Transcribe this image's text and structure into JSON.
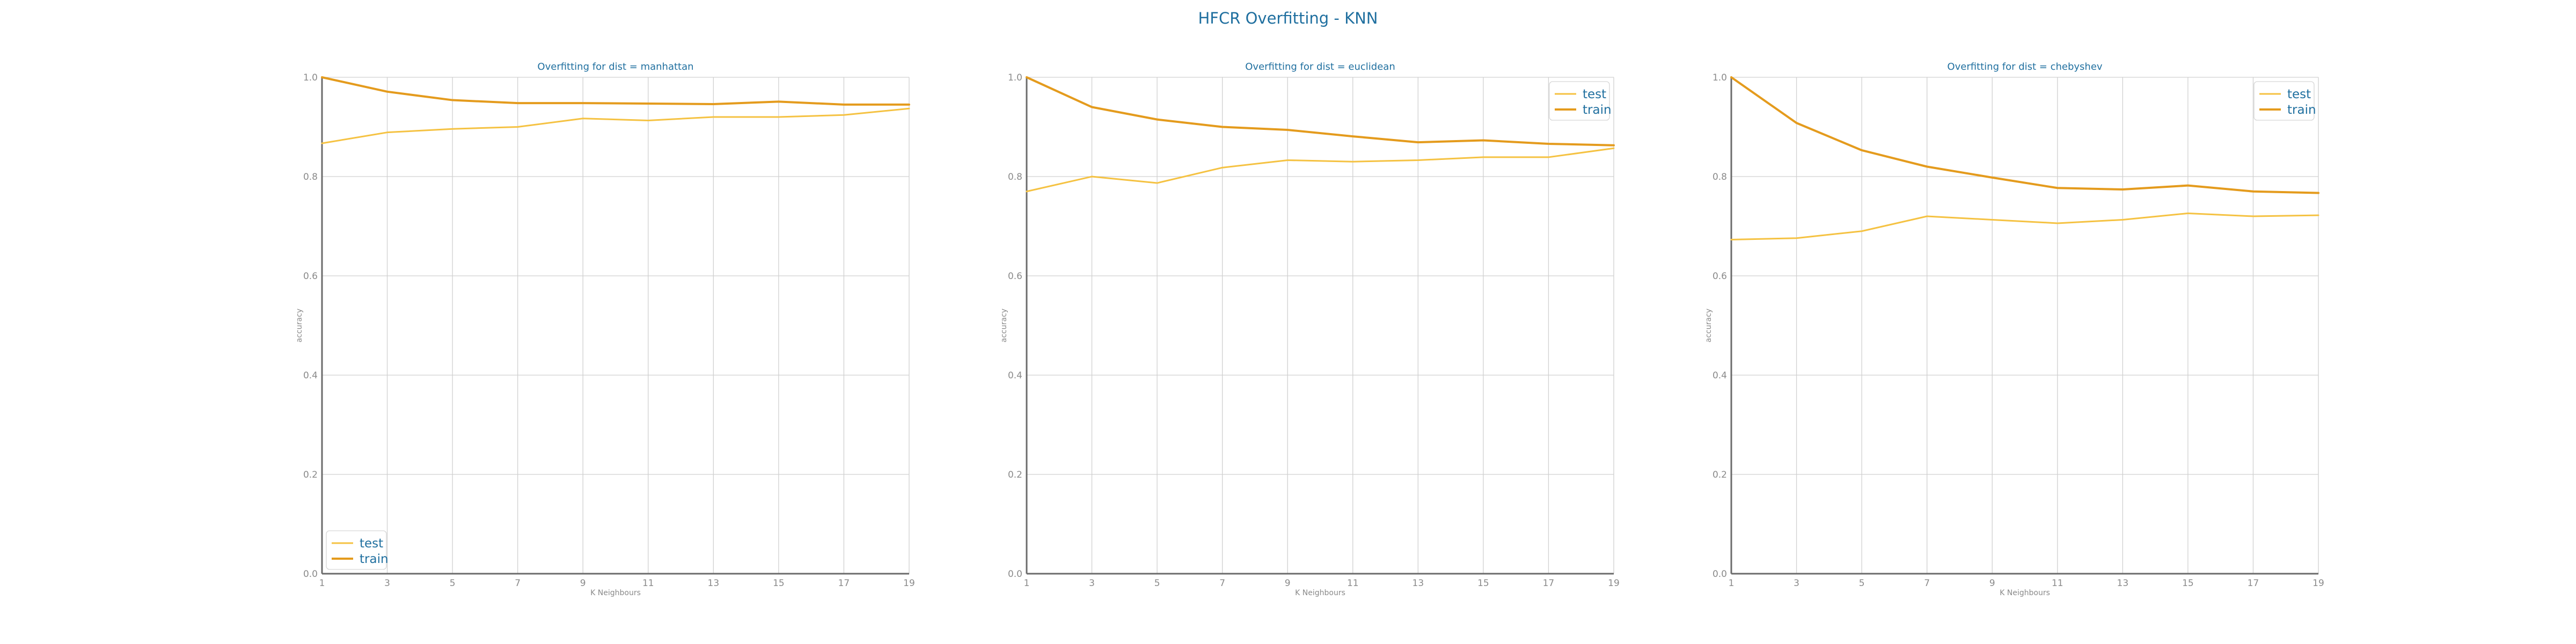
{
  "figure": {
    "title": "HFCR Overfitting - KNN"
  },
  "colors": {
    "test": "#f5c242",
    "train": "#e49b1d",
    "grid": "#d0d0d0",
    "axis": "#6b6b6b",
    "title": "#1f6f9f",
    "tick": "#8a8a8a"
  },
  "chart_data": [
    {
      "type": "line",
      "title": "Overfitting for dist = manhattan",
      "xlabel": "K Neighbours",
      "ylabel": "accuracy",
      "x": [
        1,
        3,
        5,
        7,
        9,
        11,
        13,
        15,
        17,
        19
      ],
      "xlim": [
        1,
        19
      ],
      "ylim": [
        0.0,
        1.0
      ],
      "y_ticks": [
        "0.0",
        "0.2",
        "0.4",
        "0.6",
        "0.8",
        "1.0"
      ],
      "grid": true,
      "legend_position": "lower-left",
      "series": [
        {
          "name": "test",
          "values": [
            0.867,
            0.889,
            0.896,
            0.9,
            0.917,
            0.913,
            0.92,
            0.92,
            0.924,
            0.937
          ]
        },
        {
          "name": "train",
          "values": [
            1.0,
            0.971,
            0.954,
            0.948,
            0.948,
            0.947,
            0.946,
            0.951,
            0.945,
            0.945
          ]
        }
      ]
    },
    {
      "type": "line",
      "title": "Overfitting for dist = euclidean",
      "xlabel": "K Neighbours",
      "ylabel": "accuracy",
      "x": [
        1,
        3,
        5,
        7,
        9,
        11,
        13,
        15,
        17,
        19
      ],
      "xlim": [
        1,
        19
      ],
      "ylim": [
        0.0,
        1.0
      ],
      "y_ticks": [
        "0.0",
        "0.2",
        "0.4",
        "0.6",
        "0.8",
        "1.0"
      ],
      "grid": true,
      "legend_position": "top-right",
      "series": [
        {
          "name": "test",
          "values": [
            0.77,
            0.8,
            0.787,
            0.818,
            0.833,
            0.83,
            0.833,
            0.839,
            0.839,
            0.857
          ]
        },
        {
          "name": "train",
          "values": [
            1.0,
            0.94,
            0.915,
            0.9,
            0.894,
            0.881,
            0.869,
            0.873,
            0.866,
            0.863
          ]
        }
      ]
    },
    {
      "type": "line",
      "title": "Overfitting for dist = chebyshev",
      "xlabel": "K Neighbours",
      "ylabel": "accuracy",
      "x": [
        1,
        3,
        5,
        7,
        9,
        11,
        13,
        15,
        17,
        19
      ],
      "xlim": [
        1,
        19
      ],
      "ylim": [
        0.0,
        1.0
      ],
      "y_ticks": [
        "0.0",
        "0.2",
        "0.4",
        "0.6",
        "0.8",
        "1.0"
      ],
      "grid": true,
      "legend_position": "top-right",
      "series": [
        {
          "name": "test",
          "values": [
            0.673,
            0.676,
            0.69,
            0.72,
            0.713,
            0.706,
            0.713,
            0.726,
            0.72,
            0.722
          ]
        },
        {
          "name": "train",
          "values": [
            1.0,
            0.908,
            0.853,
            0.82,
            0.798,
            0.777,
            0.774,
            0.782,
            0.77,
            0.767
          ]
        }
      ]
    }
  ]
}
